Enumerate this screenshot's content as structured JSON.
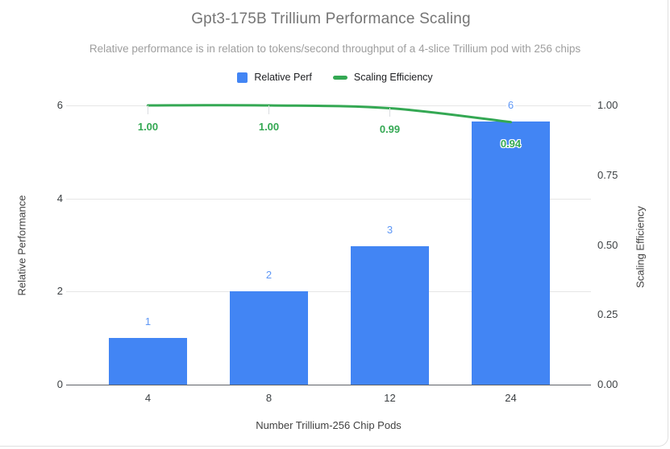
{
  "header": {
    "title": "Gpt3-175B Trillium Performance Scaling",
    "subtitle": "Relative performance is in relation to tokens/second throughput of a 4-slice Trillium pod with 256 chips"
  },
  "legend": {
    "items": [
      {
        "label": "Relative Perf",
        "color": "#4285f4",
        "swatch": "square"
      },
      {
        "label": "Scaling Efficiency",
        "color": "#34a853",
        "swatch": "dash"
      }
    ]
  },
  "chart_data": {
    "type": "bar",
    "combo": "columns with smooth line overlay, dual y-axes",
    "title": "Gpt3-175B Trillium Performance Scaling",
    "subtitle": "Relative performance is in relation to tokens/second throughput of a 4-slice Trillium pod with 256 chips",
    "categories": [
      "4",
      "8",
      "12",
      "24"
    ],
    "xlabel": "Number Trillium-256 Chip Pods",
    "series": [
      {
        "name": "Relative Perf",
        "chart_type": "bar",
        "axis": "left",
        "color": "#4285f4",
        "label_color": "#5e97f6",
        "values": [
          1,
          2,
          3,
          6
        ],
        "data_labels": [
          "1",
          "2",
          "3",
          "6"
        ],
        "rendered_values": [
          1,
          2,
          2.97,
          5.66
        ]
      },
      {
        "name": "Scaling Efficiency",
        "chart_type": "line",
        "axis": "right",
        "color": "#34a853",
        "values": [
          1.0,
          1.0,
          0.99,
          0.94
        ],
        "data_labels": [
          "1.00",
          "1.00",
          "0.99",
          "0.94"
        ]
      }
    ],
    "left_axis": {
      "title": "Relative Performance",
      "ticks": [
        0,
        2,
        4,
        6
      ],
      "range": [
        0,
        6
      ]
    },
    "right_axis": {
      "title": "Scaling Efficiency",
      "ticks": [
        "0.00",
        "0.25",
        "0.50",
        "0.75",
        "1.00"
      ],
      "range": [
        0,
        1
      ]
    },
    "grid": {
      "horizontal": true,
      "at_left_ticks_only": true
    },
    "legend_position": "top"
  },
  "colors": {
    "bar": "#4285f4",
    "bar_label": "#5e97f6",
    "line": "#34a853",
    "title": "#757575",
    "subtitle": "#9e9e9e",
    "tick_label": "#3c4043",
    "axis_title": "#424242",
    "gridline": "#e6e6e6",
    "axis_line": "#5f6368",
    "point_tick": "#dadce0",
    "card_border": "#e0e0e0"
  }
}
